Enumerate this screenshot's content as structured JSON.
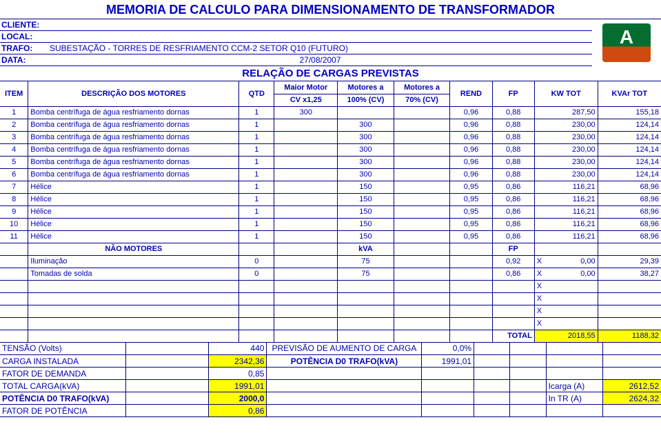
{
  "title": "MEMORIA DE CALCULO PARA DIMENSIONAMENTO DE TRANSFORMADOR",
  "subtitle": "RELAÇÃO DE CARGAS PREVISTAS",
  "client_label": "CLIENTE:",
  "client_value": "",
  "local_label": "LOCAL:",
  "local_value": "",
  "trafo_label": "TRAFO:",
  "trafo_value": "SUBESTAÇÃO - TORRES DE RESFRIAMENTO CCM-2 SETOR Q10 (FUTURO)",
  "date_label": "DATA:",
  "date_value": "27/08/2007",
  "cols": {
    "item": "ITEM",
    "desc": "DESCRIÇÃO DOS MOTORES",
    "qtd": "QTD",
    "mm1": "Maior Motor",
    "mm2": "CV x1,25",
    "m100a": "Motores a",
    "m100b": "100% (CV)",
    "m70a": "Motores a",
    "m70b": "70% (CV)",
    "rend": "REND",
    "fp": "FP",
    "kw": "KW TOT",
    "kvar": "KVAr TOT"
  },
  "rows": [
    {
      "item": "1",
      "desc": "Bomba centrífuga de água resfriamento dornas",
      "qtd": "1",
      "mm": "300",
      "m100": "",
      "m70": "",
      "rend": "0,96",
      "fp": "0,88",
      "kw": "287,50",
      "kvar": "155,18"
    },
    {
      "item": "2",
      "desc": "Bomba centrífuga de água resfriamento dornas",
      "qtd": "1",
      "mm": "",
      "m100": "300",
      "m70": "",
      "rend": "0,96",
      "fp": "0,88",
      "kw": "230,00",
      "kvar": "124,14"
    },
    {
      "item": "3",
      "desc": "Bomba centrífuga de água resfriamento dornas",
      "qtd": "1",
      "mm": "",
      "m100": "300",
      "m70": "",
      "rend": "0,96",
      "fp": "0,88",
      "kw": "230,00",
      "kvar": "124,14"
    },
    {
      "item": "4",
      "desc": "Bomba centrífuga de água resfriamento dornas",
      "qtd": "1",
      "mm": "",
      "m100": "300",
      "m70": "",
      "rend": "0,96",
      "fp": "0,88",
      "kw": "230,00",
      "kvar": "124,14"
    },
    {
      "item": "5",
      "desc": "Bomba centrífuga de água resfriamento dornas",
      "qtd": "1",
      "mm": "",
      "m100": "300",
      "m70": "",
      "rend": "0,96",
      "fp": "0,88",
      "kw": "230,00",
      "kvar": "124,14"
    },
    {
      "item": "6",
      "desc": "Bomba centrífuga de água resfriamento dornas",
      "qtd": "1",
      "mm": "",
      "m100": "300",
      "m70": "",
      "rend": "0,96",
      "fp": "0,88",
      "kw": "230,00",
      "kvar": "124,14"
    },
    {
      "item": "7",
      "desc": "Hélice",
      "qtd": "1",
      "mm": "",
      "m100": "150",
      "m70": "",
      "rend": "0,95",
      "fp": "0,86",
      "kw": "116,21",
      "kvar": "68,96"
    },
    {
      "item": "8",
      "desc": "Hélice",
      "qtd": "1",
      "mm": "",
      "m100": "150",
      "m70": "",
      "rend": "0,95",
      "fp": "0,86",
      "kw": "116,21",
      "kvar": "68,96"
    },
    {
      "item": "9",
      "desc": "Hélice",
      "qtd": "1",
      "mm": "",
      "m100": "150",
      "m70": "",
      "rend": "0,95",
      "fp": "0,86",
      "kw": "116,21",
      "kvar": "68,96"
    },
    {
      "item": "10",
      "desc": "Hélice",
      "qtd": "1",
      "mm": "",
      "m100": "150",
      "m70": "",
      "rend": "0,95",
      "fp": "0,86",
      "kw": "116,21",
      "kvar": "68,96"
    },
    {
      "item": "11",
      "desc": "Hélice",
      "qtd": "1",
      "mm": "",
      "m100": "150",
      "m70": "",
      "rend": "0,95",
      "fp": "0,86",
      "kw": "116,21",
      "kvar": "68,96"
    }
  ],
  "nm_label": "NÃO MOTORES",
  "nm_kva": "kVA",
  "nm_fp": "FP",
  "nm_rows": [
    {
      "desc": "Iluminação",
      "qtd": "0",
      "kva": "75",
      "rend": "",
      "fp": "0,92",
      "x": "X",
      "kw": "0,00",
      "kvar": "29,39"
    },
    {
      "desc": "Tomadas de solda",
      "qtd": "0",
      "kva": "75",
      "rend": "",
      "fp": "0,86",
      "x": "X",
      "kw": "0,00",
      "kvar": "38,27"
    }
  ],
  "x_only": "X",
  "total_label": "TOTAL",
  "total_kw": "2018,55",
  "total_kvar": "1188,32",
  "foot": {
    "tensao_lbl": "TENSÃO (Volts)",
    "tensao_val": "440",
    "prev_lbl": "PREVISÃO DE AUMENTO DE CARGA",
    "prev_val": "0,0%",
    "carga_lbl": "CARGA INSTALADA",
    "carga_val": "2342,36",
    "pot_lbl": "POTÊNCIA D0 TRAFO(kVA)",
    "pot_val": "1991,01",
    "fdem_lbl": "FATOR DE DEMANDA",
    "fdem_val": "0,85",
    "totcarga_lbl": "TOTAL CARGA(kVA)",
    "totcarga_val": "1991,01",
    "icarga_lbl": "Icarga (A)",
    "icarga_val": "2612,52",
    "potd0_lbl": "POTÊNCIA D0 TRAFO(kVA)",
    "potd0_val": "2000,0",
    "intr_lbl": "In TR (A)",
    "intr_val": "2624,32",
    "fpot_lbl": "FATOR DE POTÊNCIA",
    "fpot_val": "0,86"
  },
  "style": {
    "text_color": "#0000b0",
    "border_color": "#000080",
    "highlight": "#ffff00",
    "title_fontsize": 18,
    "body_fontsize": 11
  }
}
